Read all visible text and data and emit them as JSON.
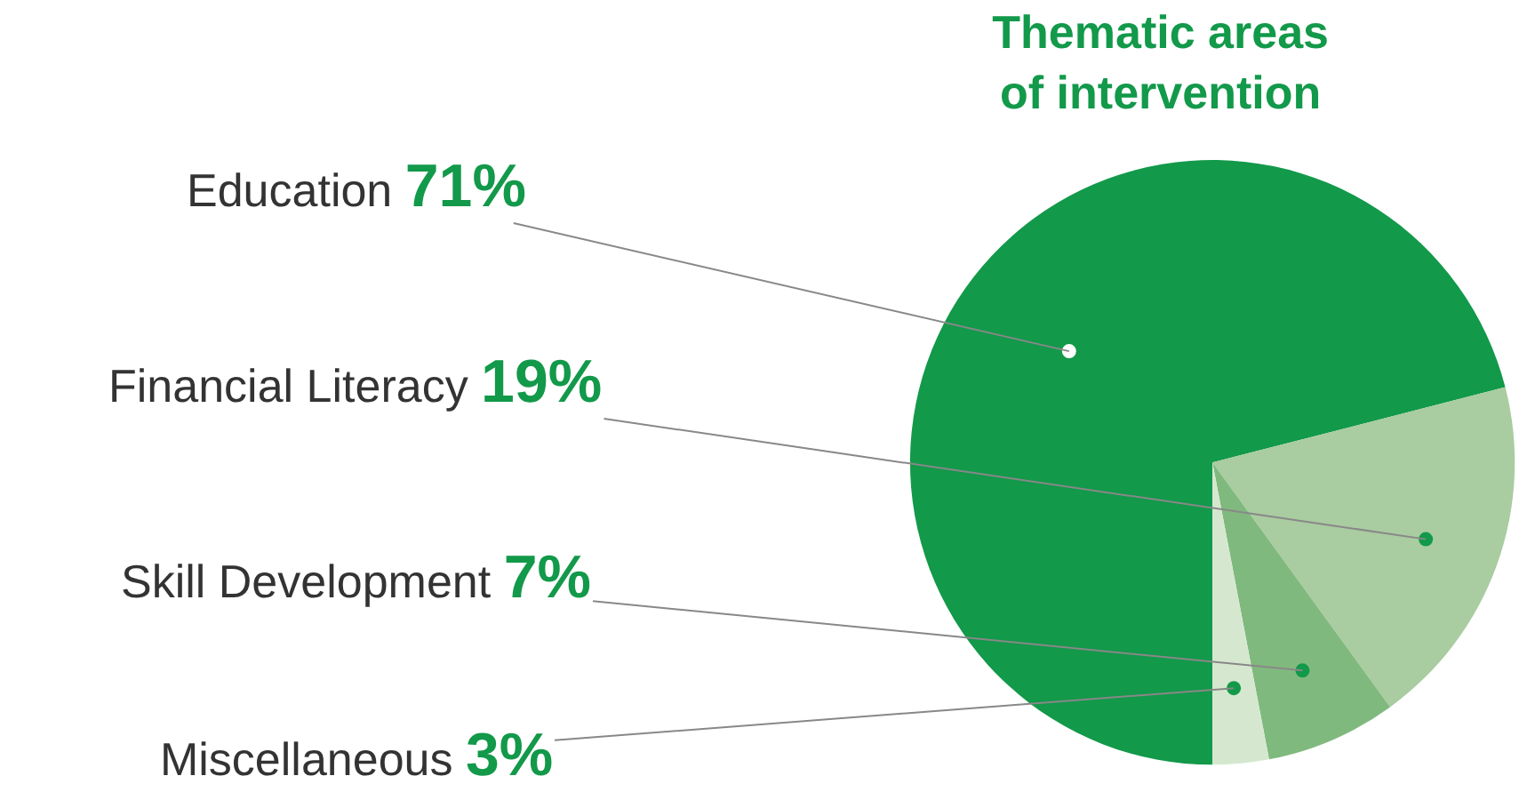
{
  "chart_data": {
    "type": "pie",
    "title": "Thematic areas of intervention",
    "categories": [
      "Education",
      "Financial Literacy",
      "Skill Development",
      "Miscellaneous"
    ],
    "values": [
      71,
      19,
      7,
      3
    ],
    "value_labels": [
      "71%",
      "19%",
      "7%",
      "3%"
    ],
    "colors": [
      "#12994a",
      "#a9cca0",
      "#80b97e",
      "#d5e8cf"
    ]
  }
}
